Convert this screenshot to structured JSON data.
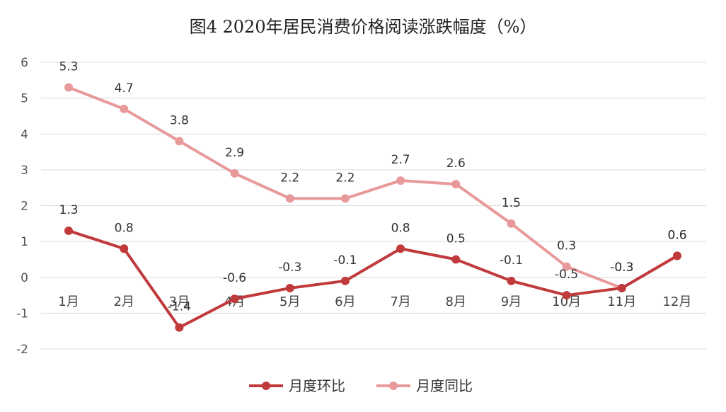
{
  "chart_data": {
    "type": "line",
    "title": "图4  2020年居民消费价格阅读涨跌幅度（%）",
    "categories": [
      "1月",
      "2月",
      "3月",
      "4月",
      "5月",
      "6月",
      "7月",
      "8月",
      "9月",
      "10月",
      "11月",
      "12月"
    ],
    "y_ticks": [
      "6",
      "5",
      "4",
      "3",
      "2",
      "1",
      "0",
      "-1",
      "-2"
    ],
    "ylim": [
      -2,
      6
    ],
    "grid": true,
    "legend_position": "bottom",
    "series": [
      {
        "name": "月度环比",
        "color": "#c0393b",
        "values": [
          1.3,
          0.8,
          -1.4,
          -0.6,
          -0.3,
          -0.1,
          0.8,
          0.5,
          -0.1,
          -0.5,
          -0.3,
          0.6
        ],
        "labels": [
          "1.3",
          "0.8",
          "-1.4",
          "-0.6",
          "-0.3",
          "-0.1",
          "0.8",
          "0.5",
          "-0.1",
          "-0.5",
          "-0.3",
          "0.6"
        ]
      },
      {
        "name": "月度同比",
        "color": "#e8999a",
        "values": [
          5.3,
          4.7,
          3.8,
          2.9,
          2.2,
          2.2,
          2.7,
          2.6,
          1.5,
          0.3,
          -0.3,
          0.6
        ],
        "labels": [
          "5.3",
          "4.7",
          "3.8",
          "2.9",
          "2.2",
          "2.2",
          "2.7",
          "2.6",
          "1.5",
          "0.3",
          "-0.3",
          "0.6"
        ]
      }
    ]
  }
}
